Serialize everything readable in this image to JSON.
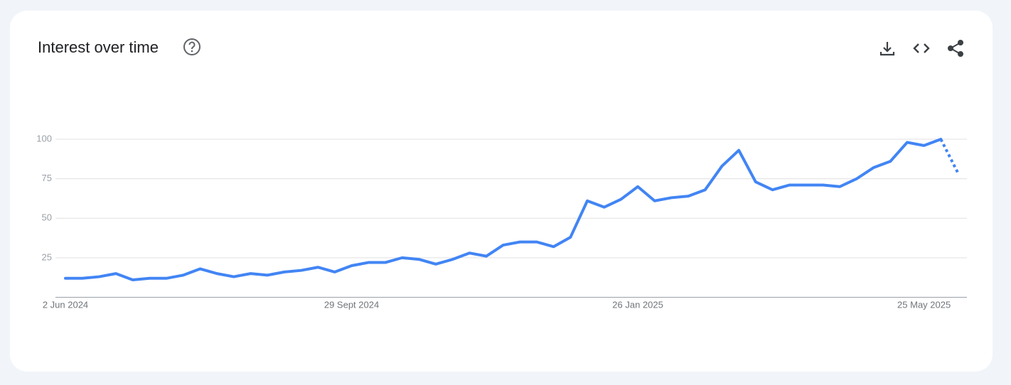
{
  "chart_data": {
    "type": "line",
    "title": "Interest over time",
    "categories": [
      "2 Jun 2024",
      null,
      null,
      null,
      null,
      null,
      null,
      null,
      null,
      null,
      null,
      null,
      null,
      null,
      null,
      null,
      null,
      "29 Sept 2024",
      null,
      null,
      null,
      null,
      null,
      null,
      null,
      null,
      null,
      null,
      null,
      null,
      null,
      null,
      null,
      null,
      "26 Jan 2025",
      null,
      null,
      null,
      null,
      null,
      null,
      null,
      null,
      null,
      null,
      null,
      null,
      null,
      null,
      null,
      null,
      "25 May 2025",
      null,
      null
    ],
    "values": [
      12,
      12,
      13,
      15,
      11,
      12,
      12,
      14,
      18,
      15,
      13,
      15,
      14,
      16,
      17,
      19,
      16,
      20,
      22,
      22,
      25,
      24,
      21,
      24,
      28,
      26,
      33,
      35,
      35,
      32,
      38,
      61,
      57,
      62,
      70,
      61,
      63,
      64,
      68,
      83,
      93,
      73,
      68,
      71,
      71,
      71,
      70,
      75,
      82,
      86,
      98,
      96,
      100,
      79
    ],
    "color": "#4285f4",
    "last_point_partial": true,
    "ylim": [
      0,
      100
    ],
    "yticks": [
      25,
      50,
      75,
      100
    ],
    "grid": true
  }
}
